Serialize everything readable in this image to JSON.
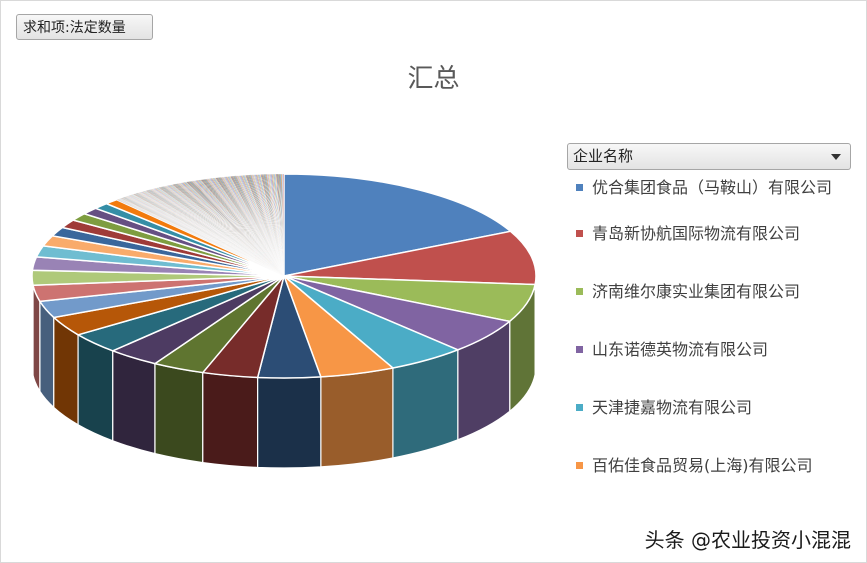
{
  "field_button": "求和项:法定数量",
  "legend_dropdown": "企业名称",
  "watermark": "头条 @农业投资小混混",
  "chart_data": {
    "type": "pie",
    "title": "汇总",
    "legend_position": "right",
    "start_angle_deg": 90,
    "series": [
      {
        "name": "优合集团食品（马鞍山）有限公司",
        "value": 16.0,
        "color": "#4F81BD"
      },
      {
        "name": "青岛新协航国际物流有限公司",
        "value": 7.7,
        "color": "#C0504D"
      },
      {
        "name": "济南维尔康实业集团有限公司",
        "value": 5.4,
        "color": "#9BBB59"
      },
      {
        "name": "山东诺德英物流有限公司",
        "value": 5.0,
        "color": "#8064A2"
      },
      {
        "name": "天津捷嘉物流有限公司",
        "value": 4.5,
        "color": "#4BACC6"
      },
      {
        "name": "百佑佳食品贸易(上海)有限公司",
        "value": 4.3,
        "color": "#F79646"
      }
    ],
    "other_slices": [
      {
        "value": 3.6,
        "color": "#2C4D75"
      },
      {
        "value": 3.2,
        "color": "#772C2A"
      },
      {
        "value": 3.0,
        "color": "#5F7530"
      },
      {
        "value": 3.0,
        "color": "#4D3B62"
      },
      {
        "value": 3.0,
        "color": "#276A7C"
      },
      {
        "value": 2.8,
        "color": "#B65708"
      },
      {
        "value": 2.4,
        "color": "#729ACA"
      },
      {
        "value": 2.3,
        "color": "#CD7371"
      },
      {
        "value": 2.1,
        "color": "#AFC97A"
      },
      {
        "value": 1.9,
        "color": "#9983B5"
      },
      {
        "value": 1.6,
        "color": "#6FBDD1"
      },
      {
        "value": 1.5,
        "color": "#F9AB6B"
      },
      {
        "value": 1.3,
        "color": "#3A679C"
      },
      {
        "value": 1.2,
        "color": "#9F3B38"
      },
      {
        "value": 1.1,
        "color": "#7E9D40"
      },
      {
        "value": 1.0,
        "color": "#664F83"
      },
      {
        "value": 0.9,
        "color": "#358EA6"
      },
      {
        "value": 0.8,
        "color": "#F27A0C"
      }
    ],
    "tail_slice_count": 190,
    "tail_total": 10.4,
    "tail_colors": [
      "#4F81BD",
      "#C0504D",
      "#9BBB59",
      "#8064A2",
      "#4BACC6",
      "#F79646",
      "#2C4D75",
      "#772C2A",
      "#5F7530",
      "#4D3B62",
      "#276A7C",
      "#B65708",
      "#729ACA",
      "#CD7371",
      "#AFC97A",
      "#9983B5"
    ]
  }
}
